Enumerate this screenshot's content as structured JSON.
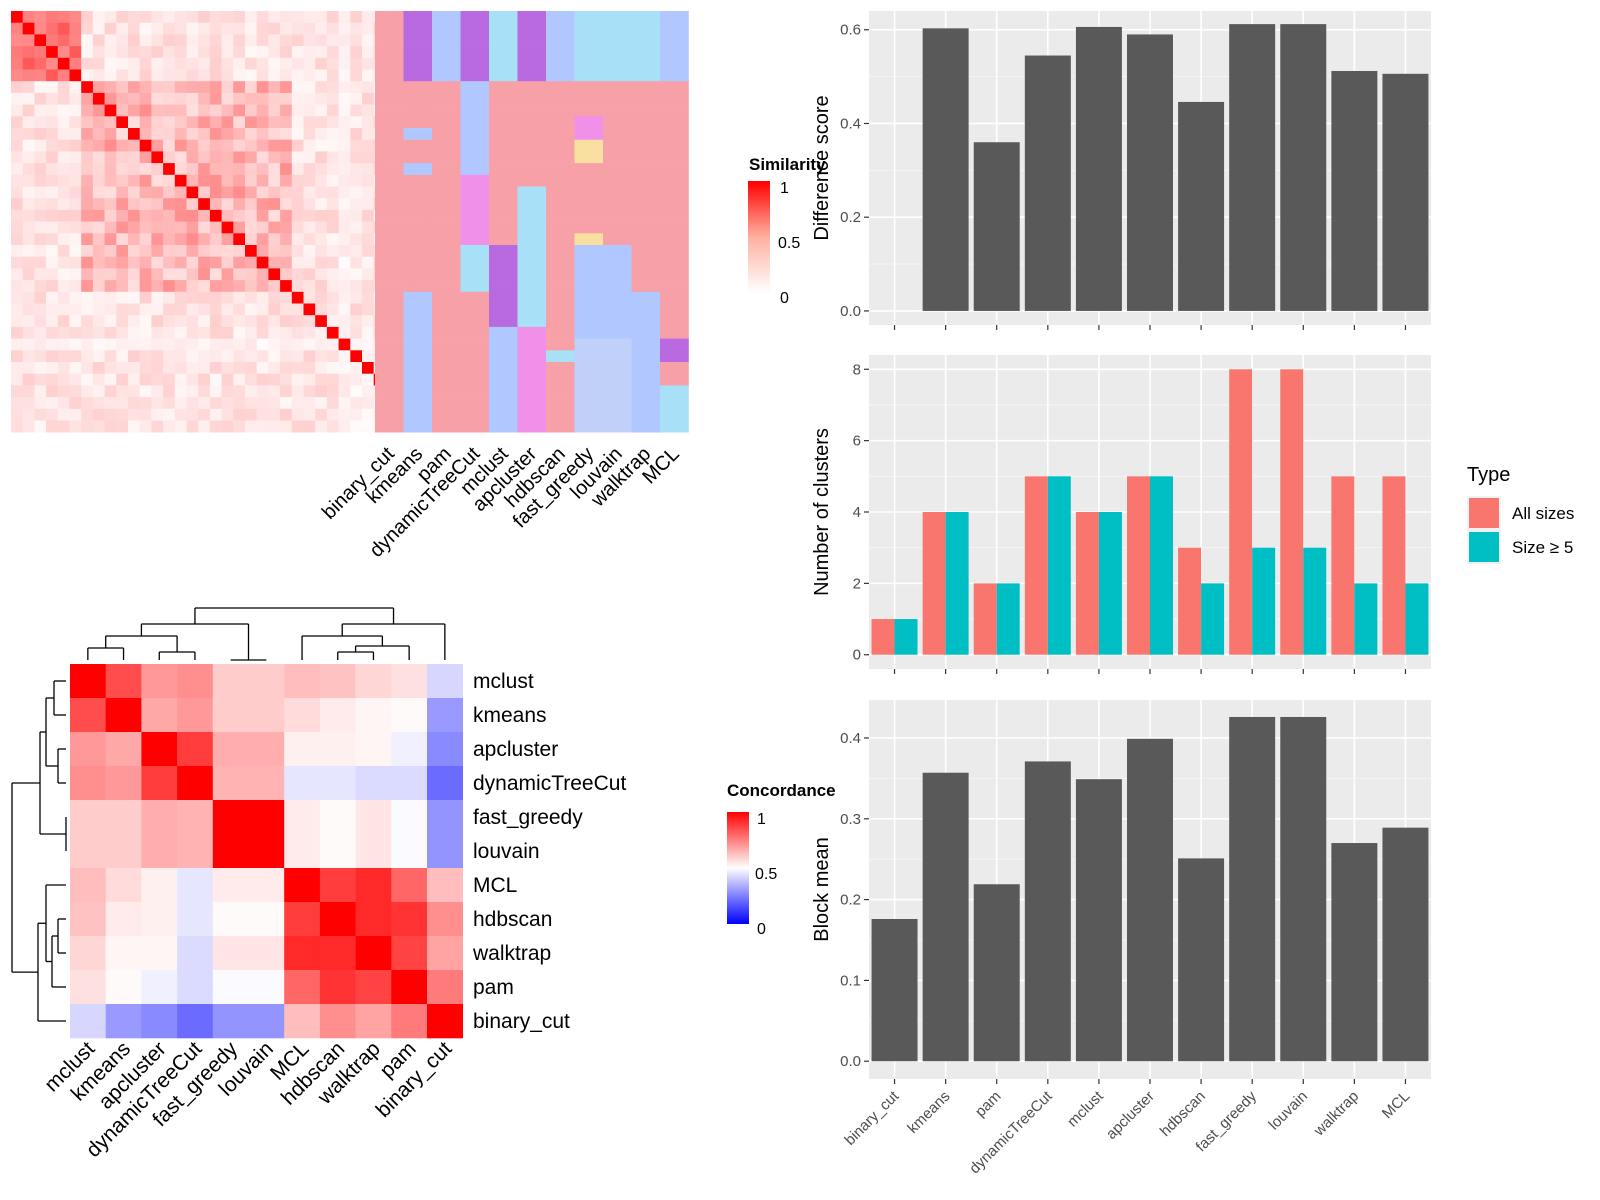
{
  "chart_data": [
    {
      "type": "heatmap",
      "name": "similarity-heatmap",
      "legend_title": "Similarity",
      "legend_ticks": [
        1,
        0.5,
        0
      ],
      "colors": {
        "high": "#ff0000",
        "low": "#ffffff"
      },
      "n": 36
    },
    {
      "type": "heatmap",
      "name": "cluster-assignment-heatmap",
      "columns": [
        "binary_cut",
        "kmeans",
        "pam",
        "dynamicTreeCut",
        "mclust",
        "apcluster",
        "hdbscan",
        "fast_greedy",
        "louvain",
        "walktrap",
        "MCL"
      ],
      "palette": [
        "#f8a0a8",
        "#b96ae0",
        "#b0c8ff",
        "#a8e0f8",
        "#f090e8",
        "#fae0a0",
        "#c0d0f8",
        "#f868c8"
      ]
    },
    {
      "type": "heatmap",
      "name": "concordance-heatmap",
      "legend_title": "Concordance",
      "legend_ticks": [
        1,
        0.5,
        0
      ],
      "colors": {
        "high": "#ff0000",
        "mid": "#ffffff",
        "low": "#0000ff"
      },
      "rows": [
        "mclust",
        "kmeans",
        "apcluster",
        "dynamicTreeCut",
        "fast_greedy",
        "louvain",
        "MCL",
        "hdbscan",
        "walktrap",
        "pam",
        "binary_cut"
      ],
      "columns": [
        "mclust",
        "kmeans",
        "apcluster",
        "dynamicTreeCut",
        "fast_greedy",
        "louvain",
        "MCL",
        "hdbscan",
        "walktrap",
        "pam",
        "binary_cut"
      ],
      "values": [
        [
          1.0,
          0.85,
          0.7,
          0.72,
          0.6,
          0.6,
          0.63,
          0.62,
          0.58,
          0.56,
          0.42
        ],
        [
          0.85,
          1.0,
          0.67,
          0.7,
          0.6,
          0.6,
          0.57,
          0.54,
          0.52,
          0.51,
          0.3
        ],
        [
          0.7,
          0.67,
          1.0,
          0.88,
          0.66,
          0.66,
          0.53,
          0.53,
          0.52,
          0.47,
          0.27
        ],
        [
          0.72,
          0.7,
          0.88,
          1.0,
          0.65,
          0.65,
          0.45,
          0.45,
          0.43,
          0.43,
          0.21
        ],
        [
          0.6,
          0.6,
          0.66,
          0.65,
          1.0,
          1.0,
          0.54,
          0.51,
          0.55,
          0.49,
          0.29
        ],
        [
          0.6,
          0.6,
          0.66,
          0.65,
          1.0,
          1.0,
          0.54,
          0.51,
          0.55,
          0.49,
          0.29
        ],
        [
          0.63,
          0.57,
          0.53,
          0.45,
          0.54,
          0.54,
          1.0,
          0.88,
          0.92,
          0.8,
          0.63
        ],
        [
          0.62,
          0.54,
          0.53,
          0.45,
          0.51,
          0.51,
          0.88,
          1.0,
          0.92,
          0.9,
          0.72
        ],
        [
          0.58,
          0.52,
          0.52,
          0.43,
          0.55,
          0.55,
          0.92,
          0.92,
          1.0,
          0.87,
          0.68
        ],
        [
          0.56,
          0.51,
          0.47,
          0.43,
          0.49,
          0.49,
          0.8,
          0.9,
          0.87,
          1.0,
          0.76
        ],
        [
          0.42,
          0.3,
          0.27,
          0.21,
          0.29,
          0.29,
          0.63,
          0.72,
          0.68,
          0.76,
          1.0
        ]
      ]
    },
    {
      "type": "bar",
      "name": "difference-score",
      "categories": [
        "binary_cut",
        "kmeans",
        "pam",
        "dynamicTreeCut",
        "mclust",
        "apcluster",
        "hdbscan",
        "fast_greedy",
        "louvain",
        "walktrap",
        "MCL"
      ],
      "values": [
        0.0,
        0.603,
        0.36,
        0.545,
        0.606,
        0.59,
        0.446,
        0.612,
        0.612,
        0.512,
        0.506
      ],
      "ylabel": "Difference score",
      "ylim": [
        -0.03,
        0.64
      ],
      "yticks": [
        0.0,
        0.2,
        0.4,
        0.6
      ],
      "ytick_labels": [
        "0.0",
        "0.2",
        "0.4",
        "0.6"
      ],
      "bar_color": "#595959"
    },
    {
      "type": "bar",
      "name": "number-of-clusters",
      "categories": [
        "binary_cut",
        "kmeans",
        "pam",
        "dynamicTreeCut",
        "mclust",
        "apcluster",
        "hdbscan",
        "fast_greedy",
        "louvain",
        "walktrap",
        "MCL"
      ],
      "series": [
        {
          "name": "All sizes",
          "values": [
            1,
            4,
            2,
            5,
            4,
            5,
            3,
            8,
            8,
            5,
            5
          ],
          "color": "#f8766d"
        },
        {
          "name": "Size ≥ 5",
          "values": [
            1,
            4,
            2,
            5,
            4,
            5,
            2,
            3,
            3,
            2,
            2
          ],
          "color": "#00bfc4"
        }
      ],
      "ylabel": "Number of clusters",
      "ylim": [
        -0.4,
        8.4
      ],
      "yticks": [
        0,
        2,
        4,
        6,
        8
      ],
      "ytick_labels": [
        "0",
        "2",
        "4",
        "6",
        "8"
      ],
      "legend_title": "Type",
      "legend_position": "right"
    },
    {
      "type": "bar",
      "name": "block-mean",
      "categories": [
        "binary_cut",
        "kmeans",
        "pam",
        "dynamicTreeCut",
        "mclust",
        "apcluster",
        "hdbscan",
        "fast_greedy",
        "louvain",
        "walktrap",
        "MCL"
      ],
      "values": [
        0.176,
        0.357,
        0.219,
        0.371,
        0.349,
        0.399,
        0.251,
        0.426,
        0.426,
        0.27,
        0.289
      ],
      "ylabel": "Block mean",
      "ylim": [
        -0.022,
        0.447
      ],
      "yticks": [
        0.0,
        0.1,
        0.2,
        0.3,
        0.4
      ],
      "ytick_labels": [
        "0.0",
        "0.1",
        "0.2",
        "0.3",
        "0.4"
      ],
      "bar_color": "#595959"
    }
  ]
}
